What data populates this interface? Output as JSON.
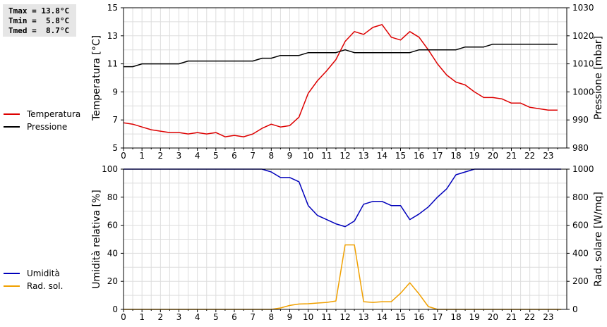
{
  "stats": {
    "tmax": "Tmax = 13.8°C",
    "tmin": "Tmin =  5.8°C",
    "tmed": "Tmed =  8.7°C"
  },
  "chart_data": [
    {
      "type": "line",
      "ylabel_left": "Temperatura [°C]",
      "ylabel_right": "Pressione [mbar]",
      "xlim": [
        0,
        24
      ],
      "ylim_left": [
        5,
        15
      ],
      "ylim_right": [
        980,
        1030
      ],
      "x_ticks": [
        "0",
        "1",
        "2",
        "3",
        "4",
        "5",
        "6",
        "7",
        "8",
        "9",
        "10",
        "11",
        "12",
        "13",
        "14",
        "15",
        "16",
        "17",
        "18",
        "19",
        "20",
        "21",
        "22",
        "23"
      ],
      "y_ticks_left": [
        "5",
        "7",
        "9",
        "11",
        "13",
        "15"
      ],
      "y_ticks_right": [
        "980",
        "990",
        "1000",
        "1010",
        "1020",
        "1030"
      ],
      "grid": true,
      "legend": [
        {
          "name": "Temperatura",
          "color": "#dd0000"
        },
        {
          "name": "Pressione",
          "color": "#000000"
        }
      ],
      "series": [
        {
          "name": "Temperatura",
          "axis": "left",
          "color": "#dd0000",
          "x": [
            0,
            0.5,
            1,
            1.5,
            2,
            2.5,
            3,
            3.5,
            4,
            4.5,
            5,
            5.5,
            6,
            6.5,
            7,
            7.5,
            8,
            8.5,
            9,
            9.5,
            10,
            10.5,
            11,
            11.5,
            12,
            12.5,
            13,
            13.5,
            14,
            14.5,
            15,
            15.5,
            16,
            16.5,
            17,
            17.5,
            18,
            18.5,
            19,
            19.5,
            20,
            20.5,
            21,
            21.5,
            22,
            22.5,
            23,
            23.5
          ],
          "y": [
            6.8,
            6.7,
            6.5,
            6.3,
            6.2,
            6.1,
            6.1,
            6.0,
            6.1,
            6.0,
            6.1,
            5.8,
            5.9,
            5.8,
            6.0,
            6.4,
            6.7,
            6.5,
            6.6,
            7.2,
            8.9,
            9.8,
            10.5,
            11.3,
            12.6,
            13.3,
            13.1,
            13.6,
            13.8,
            12.9,
            12.7,
            13.3,
            12.9,
            12.0,
            11.0,
            10.2,
            9.7,
            9.5,
            9.0,
            8.6,
            8.6,
            8.5,
            8.2,
            8.2,
            7.9,
            7.8,
            7.7,
            7.7
          ]
        },
        {
          "name": "Pressione",
          "axis": "right",
          "color": "#000000",
          "x": [
            0,
            0.5,
            1,
            1.5,
            2,
            2.5,
            3,
            3.5,
            4,
            4.5,
            5,
            5.5,
            6,
            6.5,
            7,
            7.5,
            8,
            8.5,
            9,
            9.5,
            10,
            10.5,
            11,
            11.5,
            12,
            12.5,
            13,
            13.5,
            14,
            14.5,
            15,
            15.5,
            16,
            16.5,
            17,
            17.5,
            18,
            18.5,
            19,
            19.5,
            20,
            20.5,
            21,
            21.5,
            22,
            22.5,
            23,
            23.5
          ],
          "y": [
            1009,
            1009,
            1010,
            1010,
            1010,
            1010,
            1010,
            1011,
            1011,
            1011,
            1011,
            1011,
            1011,
            1011,
            1011,
            1012,
            1012,
            1013,
            1013,
            1013,
            1014,
            1014,
            1014,
            1014,
            1015,
            1014,
            1014,
            1014,
            1014,
            1014,
            1014,
            1014,
            1015,
            1015,
            1015,
            1015,
            1015,
            1016,
            1016,
            1016,
            1017,
            1017,
            1017,
            1017,
            1017,
            1017,
            1017,
            1017
          ]
        }
      ]
    },
    {
      "type": "line",
      "ylabel_left": "Umidità relativa [%]",
      "ylabel_right": "Rad. solare [W/mq]",
      "xlim": [
        0,
        24
      ],
      "ylim_left": [
        0,
        100
      ],
      "ylim_right": [
        0,
        1000
      ],
      "x_ticks": [
        "0",
        "1",
        "2",
        "3",
        "4",
        "5",
        "6",
        "7",
        "8",
        "9",
        "10",
        "11",
        "12",
        "13",
        "14",
        "15",
        "16",
        "17",
        "18",
        "19",
        "20",
        "21",
        "22",
        "23"
      ],
      "y_ticks_left": [
        "0",
        "20",
        "40",
        "60",
        "80",
        "100"
      ],
      "y_ticks_right": [
        "0",
        "200",
        "400",
        "600",
        "800",
        "1000"
      ],
      "grid": true,
      "legend": [
        {
          "name": "Umidità",
          "color": "#0000bb"
        },
        {
          "name": "Rad. sol.",
          "color": "#f0a000"
        }
      ],
      "series": [
        {
          "name": "Umidità",
          "axis": "left",
          "color": "#0000bb",
          "x": [
            0,
            1,
            2,
            3,
            4,
            5,
            6,
            7,
            7.5,
            8,
            8.5,
            9,
            9.5,
            10,
            10.5,
            11,
            11.5,
            12,
            12.5,
            13,
            13.5,
            14,
            14.5,
            15,
            15.5,
            16,
            16.5,
            17,
            17.5,
            18,
            18.5,
            19,
            19.5,
            20,
            21,
            22,
            23,
            23.7
          ],
          "y": [
            100,
            100,
            100,
            100,
            100,
            100,
            100,
            100,
            100,
            98,
            94,
            94,
            91,
            74,
            67,
            64,
            61,
            59,
            63,
            75,
            77,
            77,
            74,
            74,
            64,
            68,
            73,
            80,
            86,
            96,
            98,
            100,
            100,
            100,
            100,
            100,
            100,
            100
          ]
        },
        {
          "name": "Rad. sol.",
          "axis": "right",
          "color": "#f0a000",
          "x": [
            0,
            1,
            2,
            3,
            4,
            5,
            6,
            7,
            8,
            8.5,
            9,
            9.5,
            10,
            10.5,
            11,
            11.5,
            12,
            12.5,
            13,
            13.5,
            14,
            14.5,
            15,
            15.5,
            16,
            16.5,
            17,
            18,
            19,
            20,
            21,
            22,
            23,
            23.7
          ],
          "y": [
            0,
            0,
            0,
            0,
            0,
            0,
            0,
            0,
            0,
            10,
            28,
            38,
            40,
            45,
            50,
            60,
            460,
            460,
            55,
            50,
            55,
            55,
            115,
            190,
            110,
            20,
            0,
            0,
            0,
            0,
            0,
            0,
            0,
            0
          ]
        }
      ]
    }
  ]
}
